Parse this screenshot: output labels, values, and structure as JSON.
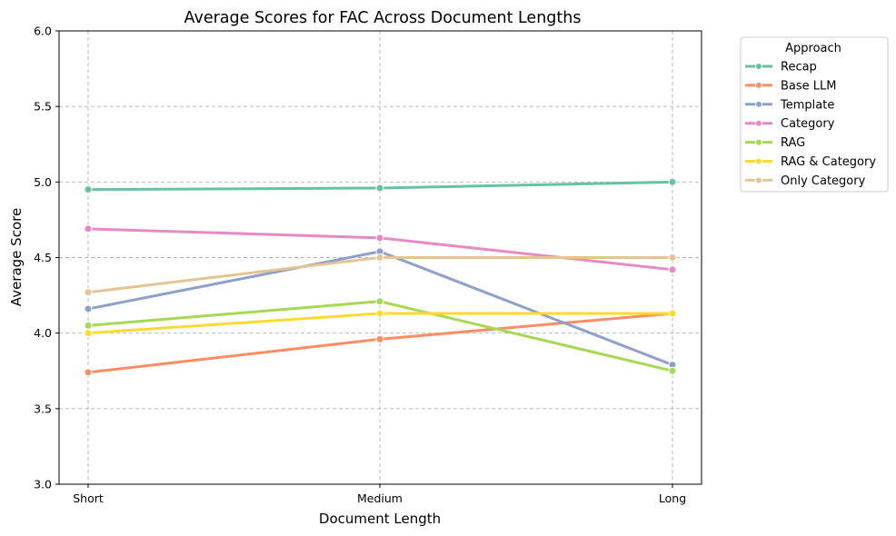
{
  "chart_data": {
    "type": "line",
    "title": "Average Scores for FAC Across Document Lengths",
    "xlabel": "Document Length",
    "ylabel": "Average Score",
    "categories": [
      "Short",
      "Medium",
      "Long"
    ],
    "ylim": [
      3.0,
      6.0
    ],
    "yticks": [
      "3.0",
      "3.5",
      "4.0",
      "4.5",
      "5.0",
      "5.5",
      "6.0"
    ],
    "grid": true,
    "legend": {
      "title": "Approach",
      "placement": "outside-right-top"
    },
    "series": [
      {
        "name": "Recap",
        "color": "#66c2a5",
        "values": [
          4.95,
          4.96,
          5.0
        ]
      },
      {
        "name": "Base LLM",
        "color": "#fc8d62",
        "values": [
          3.74,
          3.96,
          4.13
        ]
      },
      {
        "name": "Template",
        "color": "#8da0cb",
        "values": [
          4.16,
          4.54,
          3.79
        ]
      },
      {
        "name": "Category",
        "color": "#e78ac3",
        "values": [
          4.69,
          4.63,
          4.42
        ]
      },
      {
        "name": "RAG",
        "color": "#a6d854",
        "values": [
          4.05,
          4.21,
          3.75
        ]
      },
      {
        "name": "RAG & Category",
        "color": "#ffd92f",
        "values": [
          4.0,
          4.13,
          4.13
        ]
      },
      {
        "name": "Only Category",
        "color": "#e5c494",
        "values": [
          4.27,
          4.5,
          4.5
        ]
      }
    ]
  }
}
